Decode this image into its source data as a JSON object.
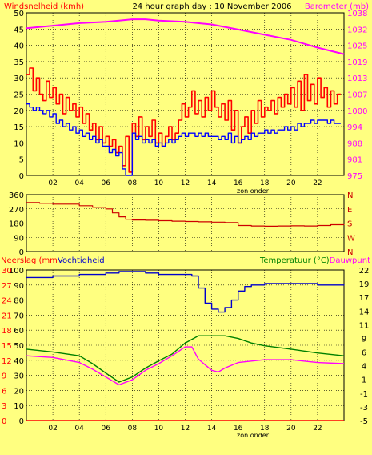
{
  "header": {
    "left_title": "Windsnelheid (kmh)",
    "center_title": "24 hour graph day : 10 November 2006",
    "right_title": "Barometer (mb)",
    "left_color": "#FF0000",
    "right_color": "#FF00FF"
  },
  "colors": {
    "background": "#FFFF80",
    "plot_bg": "#FFFF80",
    "grid": "#000000",
    "wind_gust": "#FF0000",
    "wind_avg": "#0000FF",
    "barometer": "#FF00FF",
    "direction": "#CC0000",
    "humidity": "#0000CC",
    "temperature": "#008000",
    "dewpoint": "#FF00FF",
    "rain": "#FF0000"
  },
  "chart_data": [
    {
      "id": "wind",
      "type": "line",
      "title": "24 hour graph day : 10 November 2006",
      "ylabel": "Windsnelheid (kmh)",
      "y2label": "Barometer (mb)",
      "xlabel": "zon onder",
      "x_unit": "hour of day",
      "xlim": [
        0,
        24
      ],
      "ylim": [
        0,
        50
      ],
      "y_ticks": [
        "0",
        "5",
        "10",
        "15",
        "20",
        "25",
        "30",
        "35",
        "40",
        "45",
        "50"
      ],
      "y2_ticks": [
        "975",
        "981",
        "988",
        "994",
        "1000",
        "1007",
        "1013",
        "1019",
        "1025",
        "1032",
        "1038"
      ],
      "x_ticks": [
        "02",
        "04",
        "06",
        "08",
        "10",
        "12",
        "14",
        "16",
        "18",
        "20",
        "22"
      ],
      "grid": true,
      "series": [
        {
          "name": "",
          "role": "gust",
          "axis": "left",
          "style": "step",
          "x": [
            0,
            0.25,
            0.5,
            0.75,
            1,
            1.25,
            1.5,
            1.75,
            2,
            2.25,
            2.5,
            2.75,
            3,
            3.25,
            3.5,
            3.75,
            4,
            4.25,
            4.5,
            4.75,
            5,
            5.25,
            5.5,
            5.75,
            6,
            6.25,
            6.5,
            6.75,
            7,
            7.25,
            7.5,
            7.75,
            8,
            8.25,
            8.5,
            8.75,
            9,
            9.25,
            9.5,
            9.75,
            10,
            10.25,
            10.5,
            10.75,
            11,
            11.25,
            11.5,
            11.75,
            12,
            12.25,
            12.5,
            12.75,
            13,
            13.25,
            13.5,
            13.75,
            14,
            14.25,
            14.5,
            14.75,
            15,
            15.25,
            15.5,
            15.75,
            16,
            16.25,
            16.5,
            16.75,
            17,
            17.25,
            17.5,
            17.75,
            18,
            18.25,
            18.5,
            18.75,
            19,
            19.25,
            19.5,
            19.75,
            20,
            20.25,
            20.5,
            20.75,
            21,
            21.25,
            21.5,
            21.75,
            22,
            22.25,
            22.5,
            22.75,
            23,
            23.25,
            23.5
          ],
          "values": [
            31,
            33,
            26,
            30,
            25,
            23,
            29,
            24,
            27,
            22,
            25,
            19,
            24,
            20,
            22,
            18,
            21,
            16,
            19,
            14,
            16,
            11,
            15,
            10,
            12,
            9,
            11,
            7,
            9,
            3,
            12,
            1,
            16,
            12,
            18,
            11,
            15,
            12,
            17,
            10,
            13,
            9,
            12,
            15,
            11,
            13,
            17,
            22,
            18,
            21,
            26,
            19,
            23,
            18,
            24,
            20,
            26,
            21,
            18,
            22,
            17,
            23,
            14,
            20,
            10,
            15,
            18,
            13,
            20,
            16,
            23,
            18,
            21,
            20,
            23,
            19,
            24,
            21,
            25,
            22,
            27,
            21,
            29,
            20,
            31,
            23,
            28,
            22,
            30,
            24,
            27,
            21,
            26,
            22,
            25
          ]
        },
        {
          "name": "",
          "role": "average",
          "axis": "left",
          "style": "step",
          "x": [
            0,
            0.25,
            0.5,
            0.75,
            1,
            1.25,
            1.5,
            1.75,
            2,
            2.25,
            2.5,
            2.75,
            3,
            3.25,
            3.5,
            3.75,
            4,
            4.25,
            4.5,
            4.75,
            5,
            5.25,
            5.5,
            5.75,
            6,
            6.25,
            6.5,
            6.75,
            7,
            7.25,
            7.5,
            7.75,
            8,
            8.25,
            8.5,
            8.75,
            9,
            9.25,
            9.5,
            9.75,
            10,
            10.25,
            10.5,
            10.75,
            11,
            11.25,
            11.5,
            11.75,
            12,
            12.25,
            12.5,
            12.75,
            13,
            13.25,
            13.5,
            13.75,
            14,
            14.25,
            14.5,
            14.75,
            15,
            15.25,
            15.5,
            15.75,
            16,
            16.25,
            16.5,
            16.75,
            17,
            17.25,
            17.5,
            17.75,
            18,
            18.25,
            18.5,
            18.75,
            19,
            19.25,
            19.5,
            19.75,
            20,
            20.25,
            20.5,
            20.75,
            21,
            21.25,
            21.5,
            21.75,
            22,
            22.25,
            22.5,
            22.75,
            23,
            23.25,
            23.5
          ],
          "values": [
            22,
            21,
            20,
            21,
            20,
            19,
            20,
            18,
            19,
            16,
            17,
            15,
            16,
            14,
            15,
            13,
            14,
            12,
            13,
            11,
            12,
            10,
            11,
            9,
            9,
            7,
            8,
            6,
            7,
            2,
            0,
            0,
            13,
            11,
            12,
            10,
            11,
            10,
            11,
            9,
            10,
            9,
            10,
            11,
            10,
            11,
            12,
            13,
            12,
            13,
            13,
            12,
            13,
            12,
            13,
            12,
            12,
            12,
            11,
            12,
            11,
            13,
            10,
            12,
            10,
            11,
            12,
            11,
            13,
            12,
            13,
            13,
            14,
            13,
            14,
            13,
            14,
            14,
            15,
            14,
            15,
            14,
            16,
            15,
            16,
            16,
            17,
            16,
            17,
            17,
            17,
            16,
            17,
            16,
            16
          ]
        },
        {
          "name": "",
          "role": "barometer",
          "axis": "right",
          "style": "line",
          "x": [
            0,
            2,
            4,
            6,
            7,
            8,
            9,
            10,
            12,
            14,
            16,
            18,
            20,
            22,
            24
          ],
          "values": [
            1032,
            1033,
            1034,
            1034.5,
            1035,
            1035.5,
            1035.5,
            1035,
            1034.5,
            1033.5,
            1031.5,
            1029.5,
            1027.5,
            1024.5,
            1022
          ]
        }
      ]
    },
    {
      "id": "direction",
      "type": "line",
      "xlabel": "",
      "xlim": [
        0,
        24
      ],
      "ylim": [
        0,
        360
      ],
      "y_ticks": [
        "0",
        "90",
        "180",
        "270",
        "360"
      ],
      "y2_ticks": [
        "N",
        "W",
        "S",
        "E",
        "N"
      ],
      "grid": true,
      "series": [
        {
          "name": "",
          "axis": "left",
          "style": "step",
          "x": [
            0,
            1,
            2,
            3,
            4,
            5,
            6,
            6.5,
            7,
            7.5,
            8,
            9,
            10,
            11,
            12,
            13,
            14,
            15,
            16,
            17,
            18,
            19,
            20,
            21,
            22,
            23,
            24
          ],
          "values": [
            310,
            305,
            300,
            300,
            290,
            280,
            270,
            245,
            220,
            205,
            200,
            198,
            195,
            192,
            190,
            188,
            186,
            183,
            165,
            162,
            160,
            162,
            163,
            162,
            165,
            170,
            170
          ]
        }
      ]
    },
    {
      "id": "humidity_temp",
      "type": "line",
      "ylabel": "Neerslag (mm) Vochtigheid",
      "y2label": "Temperatuur (°C) Dauwpunt",
      "xlabel": "zon onder",
      "xlim": [
        0,
        24
      ],
      "ylim": [
        0,
        100
      ],
      "y_ticks": [
        "0",
        "10",
        "20",
        "30",
        "40",
        "50",
        "60",
        "70",
        "80",
        "90",
        "100"
      ],
      "y_ticks_rain": [
        "0",
        "3",
        "6",
        "9",
        "12",
        "15",
        "18",
        "21",
        "24",
        "27",
        "30"
      ],
      "y2_ticks": [
        "-5",
        "-3",
        "-1",
        "1",
        "4",
        "6",
        "9",
        "11",
        "14",
        "17",
        "19",
        "22"
      ],
      "grid": true,
      "series": [
        {
          "name": "Vochtigheid",
          "axis": "left",
          "style": "step",
          "x": [
            0,
            2,
            4,
            5,
            6,
            7,
            8,
            9,
            10,
            11,
            12,
            12.5,
            13,
            13.5,
            14,
            14.5,
            15,
            15.5,
            16,
            16.5,
            17,
            18,
            20,
            22,
            24
          ],
          "values": [
            95,
            96,
            97,
            97,
            98,
            99,
            99,
            98,
            97,
            97,
            97,
            96,
            88,
            78,
            74,
            72,
            75,
            80,
            86,
            89,
            90,
            91,
            91,
            90,
            90
          ]
        },
        {
          "name": "Temperatuur",
          "axis": "right",
          "style": "line",
          "x": [
            0,
            2,
            4,
            5,
            6,
            7,
            8,
            9,
            10,
            11,
            12,
            13,
            14,
            15,
            16,
            17,
            18,
            20,
            22,
            24
          ],
          "values": [
            7.8,
            7.3,
            6.6,
            5.2,
            3.5,
            1.9,
            2.8,
            4.4,
            5.7,
            6.9,
            8.9,
            10.2,
            10.2,
            10.2,
            9.7,
            8.9,
            8.4,
            7.8,
            7.1,
            6.6
          ]
        },
        {
          "name": "Dauwpunt",
          "axis": "right",
          "style": "line",
          "x": [
            0,
            2,
            4,
            5,
            6,
            7,
            8,
            9,
            10,
            11,
            12,
            12.5,
            13,
            14,
            14.5,
            15,
            16,
            18,
            20,
            22,
            24
          ],
          "values": [
            6.6,
            6.3,
            5.4,
            4.2,
            2.8,
            1.4,
            2.3,
            4.0,
            5.2,
            6.6,
            8.2,
            8.2,
            6.0,
            4.0,
            3.7,
            4.4,
            5.4,
            5.9,
            5.9,
            5.4,
            5.2
          ]
        },
        {
          "name": "Neerslag",
          "axis": "left",
          "style": "line",
          "x": [
            0,
            24
          ],
          "values": [
            0,
            0
          ]
        }
      ]
    }
  ]
}
